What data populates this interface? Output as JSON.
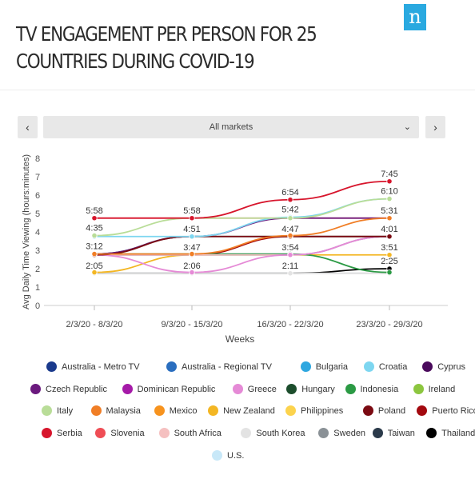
{
  "logo_letter": "n",
  "title": "TV ENGAGEMENT PER PERSON FOR 25 COUNTRIES DURING COVID-19",
  "controls": {
    "prev_label": "‹",
    "next_label": "›",
    "market_selector": "All markets",
    "chevron": "⌄"
  },
  "chart_data": {
    "type": "line",
    "title": "TV ENGAGEMENT PER PERSON FOR 25 COUNTRIES DURING COVID-19",
    "xlabel": "Weeks",
    "ylabel": "Avg Daily Time Viewing (hours:minutes)",
    "categories": [
      "2/3/20 - 8/3/20",
      "9/3/20 - 15/3/20",
      "16/3/20 - 22/3/20",
      "23/3/20 - 29/3/20"
    ],
    "ylim": [
      0,
      8
    ],
    "yticks": [
      0,
      1,
      2,
      3,
      4,
      5,
      6,
      7,
      8
    ],
    "grid": false,
    "legend_position": "bottom",
    "series": [
      {
        "name": "Serbia",
        "color": "#d7152c",
        "values": [
          4.75,
          4.75,
          5.75,
          6.75
        ]
      },
      {
        "name": "Italy",
        "color": "#b9dd98",
        "values": [
          3.8,
          4.75,
          4.75,
          5.8
        ]
      },
      {
        "name": "Croatia",
        "color": "#7dd6f0",
        "values": [
          3.75,
          3.75,
          4.8,
          5.8
        ]
      },
      {
        "name": "Malaysia",
        "color": "#f07e26",
        "values": [
          2.8,
          2.8,
          3.8,
          4.75
        ]
      },
      {
        "name": "Poland",
        "color": "#7b0a12",
        "values": [
          2.75,
          3.75,
          3.75,
          3.75
        ]
      },
      {
        "name": "Czech Republic",
        "color": "#6b1a7e",
        "values": [
          2.8,
          3.75,
          4.75,
          4.75
        ]
      },
      {
        "name": "Hungary",
        "color": "#1c4d2c",
        "values": [
          2.8,
          3.75,
          3.75,
          3.75
        ]
      },
      {
        "name": "Greece",
        "color": "#e58ad6",
        "values": [
          2.75,
          1.8,
          2.75,
          3.75
        ]
      },
      {
        "name": "South Africa",
        "color": "#f5c0c0",
        "values": [
          2.75,
          2.75,
          2.75,
          3.75
        ]
      },
      {
        "name": "Australia - Regional TV",
        "color": "#2a6ebf",
        "values": [
          2.75,
          2.75,
          2.75,
          3.75
        ]
      },
      {
        "name": "Indonesia",
        "color": "#2b9a44",
        "values": [
          2.8,
          2.8,
          2.8,
          1.8
        ]
      },
      {
        "name": "Puerto Rico",
        "color": "#a3090f",
        "values": [
          2.75,
          2.75,
          3.75,
          3.75
        ]
      },
      {
        "name": "New Zealand",
        "color": "#f3b623",
        "values": [
          1.8,
          2.75,
          2.75,
          2.75
        ]
      },
      {
        "name": "Slovenia",
        "color": "#ef4d55",
        "values": [
          4.75,
          4.75,
          4.75,
          4.75
        ]
      },
      {
        "name": "South Korea",
        "color": "#e3e3e3",
        "values": [
          1.75,
          1.75,
          1.75,
          1.75
        ]
      },
      {
        "name": "Sweden",
        "color": "#8a9196",
        "values": [
          1.75,
          1.75,
          1.75,
          1.75
        ]
      },
      {
        "name": "Thailand",
        "color": "#000000",
        "values": [
          1.75,
          1.75,
          1.75,
          2.0
        ]
      }
    ],
    "data_labels": [
      {
        "category": 0,
        "value": 4.75,
        "text": "5:58"
      },
      {
        "category": 0,
        "value": 3.8,
        "text": "4:35"
      },
      {
        "category": 0,
        "value": 2.8,
        "text": "3:12"
      },
      {
        "category": 0,
        "value": 1.75,
        "text": "2:05"
      },
      {
        "category": 1,
        "value": 4.75,
        "text": "5:58"
      },
      {
        "category": 1,
        "value": 3.75,
        "text": "4:51"
      },
      {
        "category": 1,
        "value": 2.75,
        "text": "3:47"
      },
      {
        "category": 1,
        "value": 1.75,
        "text": "2:06"
      },
      {
        "category": 2,
        "value": 5.75,
        "text": "6:54"
      },
      {
        "category": 2,
        "value": 4.8,
        "text": "5:42"
      },
      {
        "category": 2,
        "value": 3.75,
        "text": "4:47"
      },
      {
        "category": 2,
        "value": 2.75,
        "text": "3:54"
      },
      {
        "category": 2,
        "value": 1.75,
        "text": "2:11"
      },
      {
        "category": 3,
        "value": 6.75,
        "text": "7:45"
      },
      {
        "category": 3,
        "value": 5.8,
        "text": "6:10"
      },
      {
        "category": 3,
        "value": 4.75,
        "text": "5:31"
      },
      {
        "category": 3,
        "value": 3.75,
        "text": "4:01"
      },
      {
        "category": 3,
        "value": 2.75,
        "text": "3:51"
      },
      {
        "category": 3,
        "value": 2.0,
        "text": "2:25"
      }
    ]
  },
  "legend": [
    [
      {
        "label": "Australia - Metro TV",
        "color": "#1a3a8c"
      },
      {
        "label": "Australia - Regional TV",
        "color": "#2a6ebf"
      },
      {
        "label": "Bulgaria",
        "color": "#2ea7e0"
      },
      {
        "label": "Croatia",
        "color": "#7dd6f0"
      },
      {
        "label": "Cyprus",
        "color": "#4a0a5c"
      }
    ],
    [
      {
        "label": "Czech Republic",
        "color": "#6b1a7e"
      },
      {
        "label": "Dominican Republic",
        "color": "#a51aa8"
      },
      {
        "label": "Greece",
        "color": "#e58ad6"
      },
      {
        "label": "Hungary",
        "color": "#1c4d2c"
      },
      {
        "label": "Indonesia",
        "color": "#2b9a44"
      },
      {
        "label": "Ireland",
        "color": "#8cc63f"
      }
    ],
    [
      {
        "label": "Italy",
        "color": "#b9dd98"
      },
      {
        "label": "Malaysia",
        "color": "#f07e26"
      },
      {
        "label": "Mexico",
        "color": "#f7931e"
      },
      {
        "label": "New Zealand",
        "color": "#f3b623"
      },
      {
        "label": "Philippines",
        "color": "#fcd34d"
      },
      {
        "label": "Poland",
        "color": "#7b0a12"
      },
      {
        "label": "Puerto Rico",
        "color": "#a3090f"
      }
    ],
    [
      {
        "label": "Serbia",
        "color": "#d7152c"
      },
      {
        "label": "Slovenia",
        "color": "#ef4d55"
      },
      {
        "label": "South Africa",
        "color": "#f5c0c0"
      },
      {
        "label": "South Korea",
        "color": "#e3e3e3"
      },
      {
        "label": "Sweden",
        "color": "#8a9196"
      },
      {
        "label": "Taiwan",
        "color": "#2b3a4a"
      },
      {
        "label": "Thailand",
        "color": "#000000"
      }
    ],
    [
      {
        "label": "U.S.",
        "color": "#c8e8f8"
      }
    ]
  ]
}
